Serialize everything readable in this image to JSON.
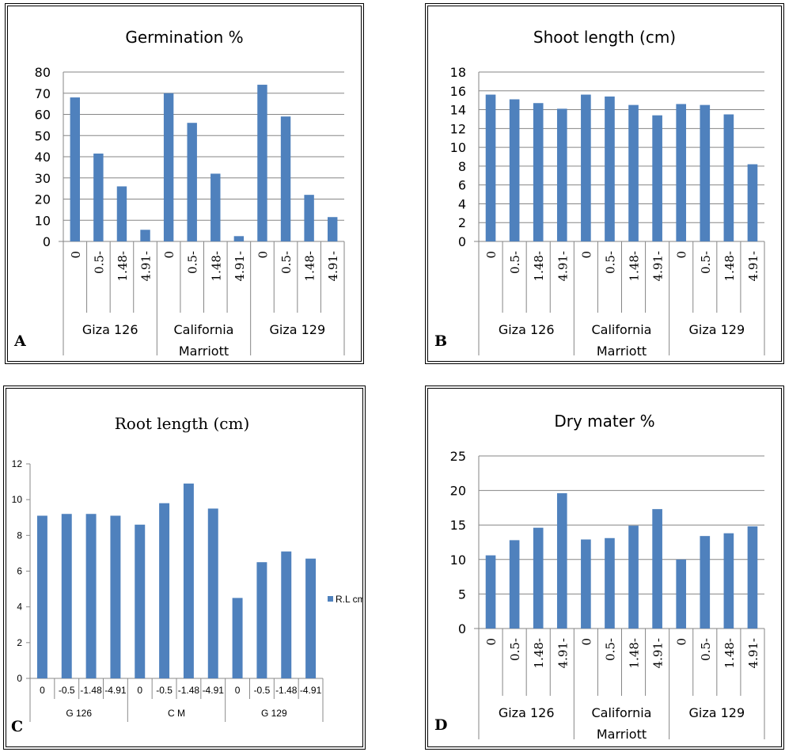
{
  "chart_data": [
    {
      "panel_label": "A",
      "type": "bar",
      "title": "Germination %",
      "categories": [
        "0",
        "0.5-",
        "1.48-",
        "4.91-",
        "0",
        "0.5-",
        "1.48-",
        "4.91-",
        "0",
        "0.5-",
        "1.48-",
        "4.91-"
      ],
      "groups": [
        {
          "name": "Giza 126",
          "lines": [
            "Giza 126"
          ]
        },
        {
          "name": "California Marriott",
          "lines": [
            "California",
            "Marriott"
          ]
        },
        {
          "name": "Giza 129",
          "lines": [
            "Giza 129"
          ]
        }
      ],
      "values": [
        68,
        41.5,
        26,
        5.5,
        70,
        56,
        32,
        2.5,
        74,
        59,
        22,
        11.5
      ],
      "ylim": [
        0,
        80
      ],
      "yticks": [
        "0",
        "10",
        "20",
        "30",
        "40",
        "50",
        "60",
        "70",
        "80"
      ],
      "grid": true,
      "color": "#4F81BD"
    },
    {
      "panel_label": "B",
      "type": "bar",
      "title": "Shoot length (cm)",
      "categories": [
        "0",
        "0.5-",
        "1.48-",
        "4.91-",
        "0",
        "0.5-",
        "1.48-",
        "4.91-",
        "0",
        "0.5-",
        "1.48-",
        "4.91-"
      ],
      "groups": [
        {
          "name": "Giza 126",
          "lines": [
            "Giza 126"
          ]
        },
        {
          "name": "California Marriott",
          "lines": [
            "California",
            "Marriott"
          ]
        },
        {
          "name": "Giza 129",
          "lines": [
            "Giza 129"
          ]
        }
      ],
      "values": [
        15.6,
        15.1,
        14.7,
        14.1,
        15.6,
        15.4,
        14.5,
        13.4,
        14.6,
        14.5,
        13.5,
        8.2
      ],
      "ylim": [
        0,
        18
      ],
      "yticks": [
        "0",
        "2",
        "4",
        "6",
        "8",
        "10",
        "12",
        "14",
        "16",
        "18"
      ],
      "grid": true,
      "color": "#4F81BD"
    },
    {
      "panel_label": "C",
      "type": "bar",
      "title": "Root length (cm)",
      "categories": [
        "0",
        "-0.5",
        "-1.48",
        "-4.91",
        "0",
        "-0.5",
        "-1.48",
        "-4.91",
        "0",
        "-0.5",
        "-1.48",
        "-4.91"
      ],
      "groups": [
        {
          "name": "G 126",
          "lines": [
            "G 126"
          ]
        },
        {
          "name": "C M",
          "lines": [
            "C M"
          ]
        },
        {
          "name": "G 129",
          "lines": [
            "G 129"
          ]
        }
      ],
      "series": [
        {
          "name": "R.L cm",
          "values": [
            9.1,
            9.2,
            9.2,
            9.1,
            8.6,
            9.8,
            10.9,
            9.5,
            4.5,
            6.5,
            7.1,
            6.7
          ]
        }
      ],
      "ylim": [
        0,
        12
      ],
      "yticks": [
        "0",
        "2",
        "4",
        "6",
        "8",
        "10",
        "12"
      ],
      "grid": false,
      "legend": "right",
      "color": "#4F81BD"
    },
    {
      "panel_label": "D",
      "type": "bar",
      "title": "Dry mater %",
      "categories": [
        "0",
        "0.5-",
        "1.48-",
        "4.91-",
        "0",
        "0.5-",
        "1.48-",
        "4.91-",
        "0",
        "0.5-",
        "1.48-",
        "4.91-"
      ],
      "groups": [
        {
          "name": "Giza 126",
          "lines": [
            "Giza 126"
          ]
        },
        {
          "name": "California Marriott",
          "lines": [
            "California",
            "Marriott"
          ]
        },
        {
          "name": "Giza 129",
          "lines": [
            "Giza 129"
          ]
        }
      ],
      "values": [
        10.6,
        12.8,
        14.6,
        19.6,
        12.9,
        13.1,
        14.9,
        17.3,
        10.0,
        13.4,
        13.8,
        14.8
      ],
      "ylim": [
        0,
        25
      ],
      "yticks": [
        "0",
        "5",
        "10",
        "15",
        "20",
        "25"
      ],
      "grid": true,
      "color": "#4F81BD"
    }
  ]
}
